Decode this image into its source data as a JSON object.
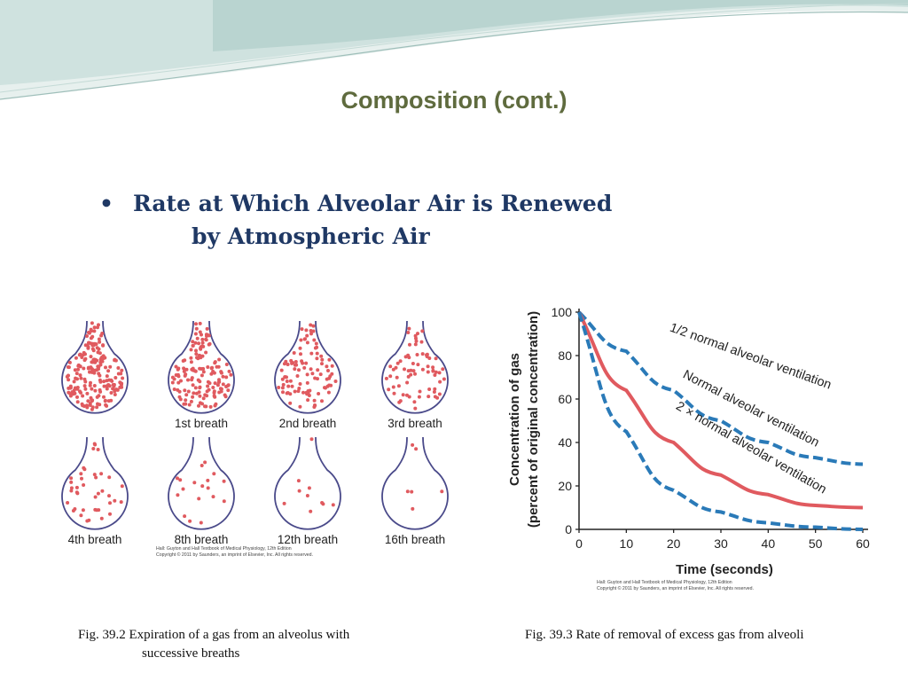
{
  "slide": {
    "title": "Composition (cont.)",
    "bullet_line1": "Rate at Which Alveolar Air is Renewed",
    "bullet_line2": "by Atmospheric Air",
    "bullet_symbol": "•"
  },
  "figure_left": {
    "labels": [
      "1st breath",
      "2nd breath",
      "3rd breath",
      "4th breath",
      "8th breath",
      "12th breath",
      "16th breath"
    ],
    "credit_line1": "Hall: Guyton and Hall Textbook of Medical Physiology, 12th Edition",
    "credit_line2": "Copyright © 2011 by Saunders, an imprint of Elsevier, Inc. All rights reserved.",
    "dot_color": "#e05a5f",
    "outline_color": "#4a4a8a"
  },
  "captions": {
    "left_line1": "Fig. 39.2  Expiration of a gas from an alveolus with",
    "left_line2": "successive breaths",
    "right": "Fig. 39.3  Rate of removal of excess gas from  alveoli"
  },
  "chart_data": {
    "type": "line",
    "xlabel": "Time (seconds)",
    "ylabel_line1": "Concentration of gas",
    "ylabel_line2": "(percent of original concentration)",
    "xlim": [
      0,
      60
    ],
    "ylim": [
      0,
      100
    ],
    "x_ticks": [
      0,
      10,
      20,
      30,
      40,
      50,
      60
    ],
    "y_ticks": [
      0,
      20,
      40,
      60,
      80,
      100
    ],
    "grid": false,
    "credit_line1": "Hall: Guyton and Hall Textbook of Medical Physiology, 12th Edition",
    "credit_line2": "Copyright © 2011 by Saunders, an imprint of Elsevier, Inc. All rights reserved.",
    "series": [
      {
        "name": "1/2 normal alveolar ventilation",
        "style": "dashed",
        "color": "#2a7ab8",
        "x": [
          0,
          10,
          20,
          30,
          40,
          50,
          60
        ],
        "y": [
          100,
          82,
          64,
          50,
          40,
          33,
          30
        ]
      },
      {
        "name": "Normal alveolar ventilation",
        "style": "solid",
        "color": "#e05a5f",
        "x": [
          0,
          10,
          20,
          30,
          40,
          50,
          60
        ],
        "y": [
          100,
          64,
          40,
          25,
          16,
          11,
          10
        ]
      },
      {
        "name": "2 × normal alveolar ventilation",
        "style": "dashed",
        "color": "#2a7ab8",
        "x": [
          0,
          10,
          20,
          30,
          40,
          50,
          60
        ],
        "y": [
          100,
          45,
          18,
          8,
          3,
          1,
          0
        ]
      }
    ]
  }
}
